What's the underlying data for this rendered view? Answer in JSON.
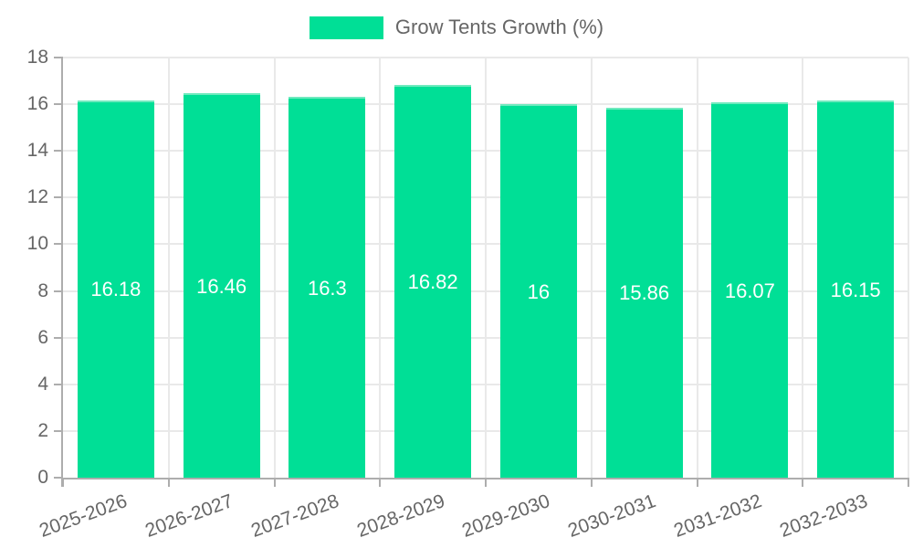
{
  "legend": {
    "label": "Grow Tents Growth (%)",
    "position": "top"
  },
  "colors": {
    "bar": "#00DF96",
    "bar_top_border": "#6FEABE",
    "grid": "#E9E9E9",
    "axis": "#ADADAD",
    "tick_text": "#666666",
    "value_label": "#FFFFFF",
    "background": "#FFFFFF"
  },
  "chart_data": {
    "type": "bar",
    "title": "Grow Tents Growth (%)",
    "xlabel": "",
    "ylabel": "",
    "categories": [
      "2025-2026",
      "2026-2027",
      "2027-2028",
      "2028-2029",
      "2029-2030",
      "2030-2031",
      "2031-2032",
      "2032-2033"
    ],
    "values": [
      16.18,
      16.46,
      16.3,
      16.82,
      16,
      15.86,
      16.07,
      16.15
    ],
    "value_labels": [
      "16.18",
      "16.46",
      "16.3",
      "16.82",
      "16",
      "15.86",
      "16.07",
      "16.15"
    ],
    "ylim": [
      0,
      18
    ],
    "yticks": [
      0,
      2,
      4,
      6,
      8,
      10,
      12,
      14,
      16,
      18
    ],
    "grid": true,
    "legend_position": "top",
    "x_label_rotation_deg": -20
  }
}
